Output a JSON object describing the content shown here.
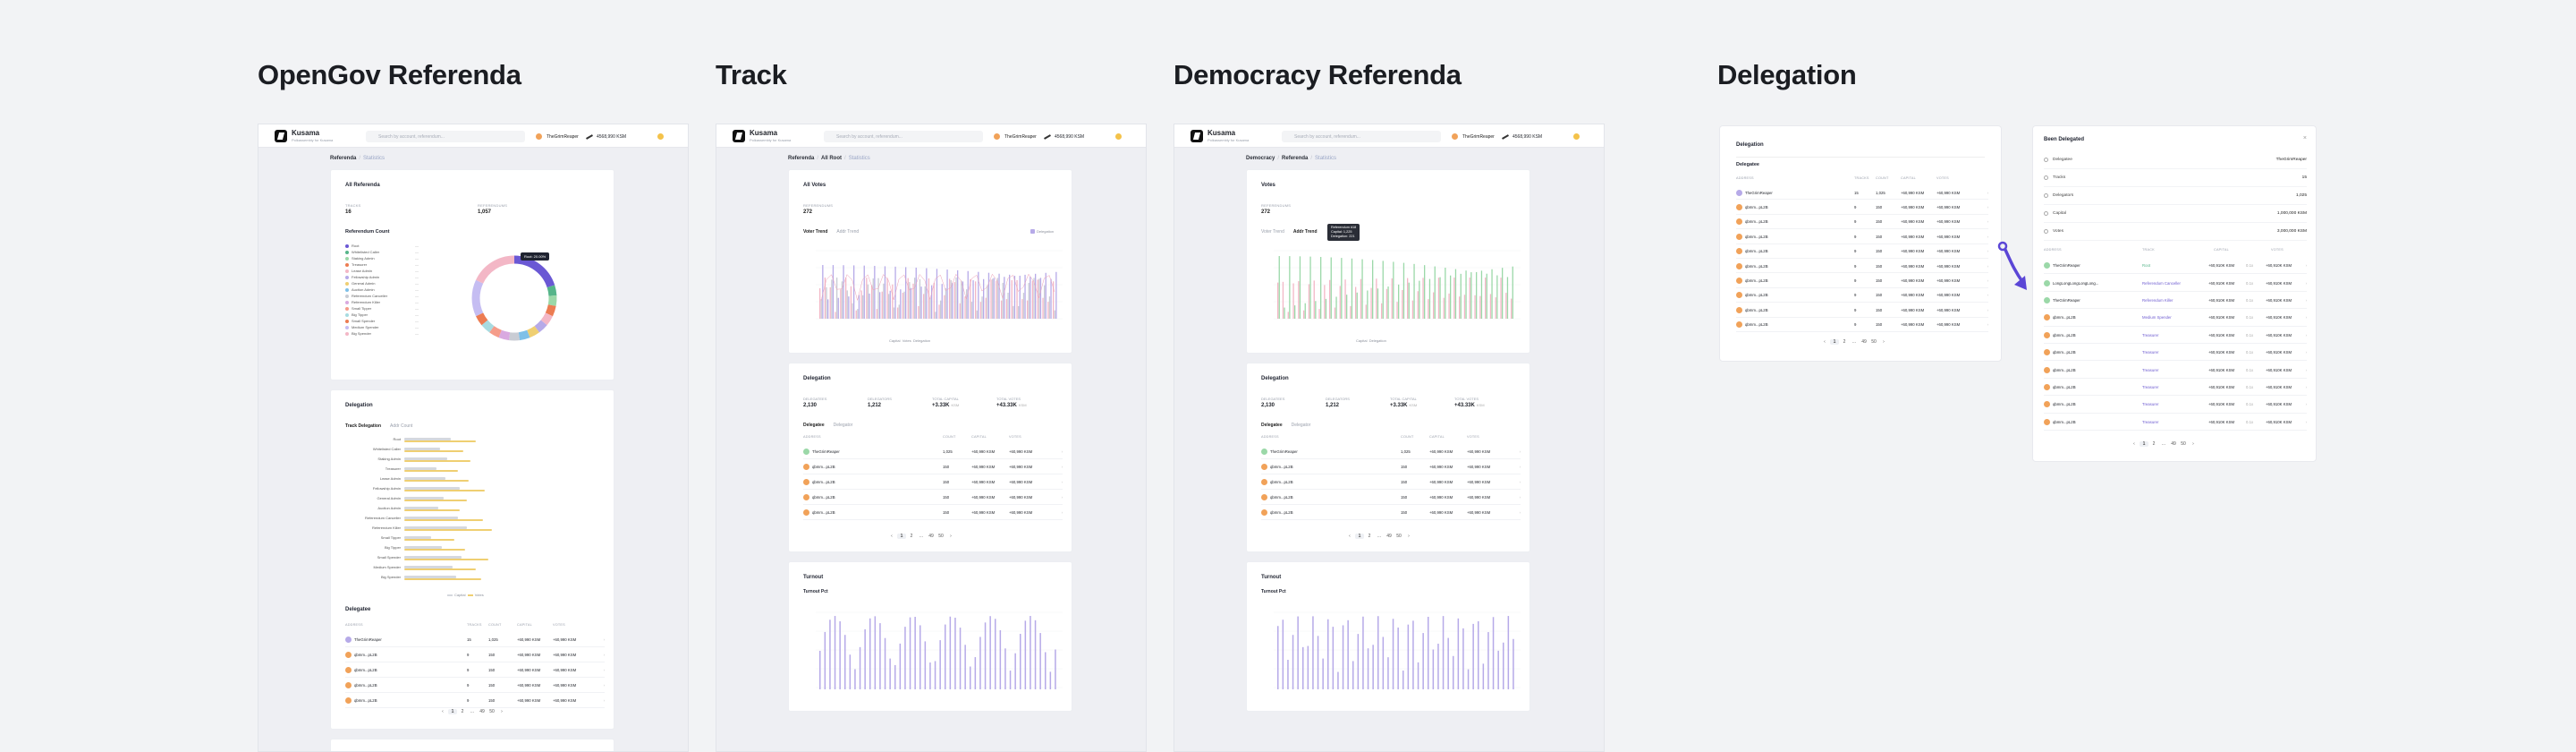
{
  "sections": {
    "opengov": "OpenGov Referenda",
    "track": "Track",
    "democracy": "Democracy Referenda",
    "delegation": "Delegation"
  },
  "app": {
    "name": "Kusama",
    "subtitle": "Polkassembly for Kusama",
    "search_placeholder": "Search by account, referendum...",
    "account": "TheGrimReaper",
    "balance": "4568,990 KSM"
  },
  "screen1": {
    "crumb": [
      "Referenda",
      "Statistics"
    ],
    "all_title": "All Referenda",
    "count_label": "TRACKS",
    "count_value": "16",
    "total_label": "REFERENDUMS",
    "total_value": "1,057",
    "ref_count_title": "Referendum Count",
    "legend": [
      "Root",
      "Whitelisted Caller",
      "Staking Admin",
      "Treasurer",
      "Lease Admin",
      "Fellowship Admin",
      "General Admin",
      "Auction Admin",
      "Referendum Canceller",
      "Referendum Killer",
      "Small Tipper",
      "Big Tipper",
      "Small Spender",
      "Medium Spender",
      "Big Spender"
    ],
    "tooltip": "Root: 20.00%",
    "delegation_title": "Delegation",
    "tabs": [
      "Track Delegation",
      "Addr Count"
    ],
    "bar_tracks": [
      "Root",
      "Whitelisted Caller",
      "Staking Admin",
      "Treasurer",
      "Lease Admin",
      "Fellowship Admin",
      "General Admin",
      "Auction Admin",
      "Referendum Canceller",
      "Referendum Killer",
      "Small Tipper",
      "Big Tipper",
      "Small Spender",
      "Medium Spender",
      "Big Spender"
    ],
    "bar_legend": [
      "Capital",
      "Votes"
    ],
    "delegatee_title": "Delegatee",
    "delegatee_headers": [
      "ADDRESS",
      "TRACKS",
      "COUNT",
      "CAPITAL",
      "VOTES"
    ],
    "delegatee_rows": [
      {
        "addr": "TheGrimReaper",
        "tracks": "15",
        "count": "1,025",
        "capital": "+60,990 KSM",
        "votes": "+60,990 KSM"
      },
      {
        "addr": "qbmm...pL2B",
        "tracks": "9",
        "count": "150",
        "capital": "+60,990 KSM",
        "votes": "+60,990 KSM"
      },
      {
        "addr": "qbmm...pL2B",
        "tracks": "9",
        "count": "150",
        "capital": "+60,990 KSM",
        "votes": "+60,990 KSM"
      },
      {
        "addr": "qbmm...pL2B",
        "tracks": "9",
        "count": "150",
        "capital": "+60,990 KSM",
        "votes": "+60,990 KSM"
      },
      {
        "addr": "qbmm...pL2B",
        "tracks": "9",
        "count": "150",
        "capital": "+60,990 KSM",
        "votes": "+60,990 KSM"
      }
    ],
    "pagination": [
      "1",
      "2",
      "...",
      "49",
      "50"
    ]
  },
  "screen2": {
    "crumb": [
      "Referenda",
      "All Root",
      "Statistics"
    ],
    "votes_title": "All Votes",
    "votes_label": "REFERENDUMS",
    "votes_value": "272",
    "tabs": [
      "Voter Trend",
      "Addr Trend"
    ],
    "legend": [
      "Capital",
      "Votes",
      "Delegation"
    ],
    "legend_right": "Delegation",
    "delegation_title": "Delegation",
    "stats": [
      {
        "label": "DELEGATEES",
        "value": "2,130"
      },
      {
        "label": "DELEGATORS",
        "value": "1,212"
      },
      {
        "label": "TOTAL CAPITAL",
        "value": "+3.33K",
        "unit": "KSM"
      },
      {
        "label": "TOTAL VOTES",
        "value": "+43.33K",
        "unit": "KSM"
      }
    ],
    "dtabs": [
      "Delegatee",
      "Delegator"
    ],
    "headers": [
      "ADDRESS",
      "COUNT",
      "CAPITAL",
      "VOTES"
    ],
    "rows": [
      {
        "addr": "TheGrimReaper",
        "count": "1,025",
        "capital": "+60,990 KSM",
        "votes": "+60,990 KSM"
      },
      {
        "addr": "qbmm...pL2B",
        "count": "150",
        "capital": "+60,990 KSM",
        "votes": "+60,990 KSM"
      },
      {
        "addr": "qbmm...pL2B",
        "count": "150",
        "capital": "+60,990 KSM",
        "votes": "+60,990 KSM"
      },
      {
        "addr": "qbmm...pL2B",
        "count": "150",
        "capital": "+60,990 KSM",
        "votes": "+60,990 KSM"
      },
      {
        "addr": "qbmm...pL2B",
        "count": "150",
        "capital": "+60,990 KSM",
        "votes": "+60,990 KSM"
      }
    ],
    "pagination": [
      "1",
      "2",
      "...",
      "49",
      "50"
    ],
    "turnout_title": "Turnout",
    "turnout_sub": "Turnout Pct"
  },
  "screen3": {
    "crumb": [
      "Democracy",
      "Referenda",
      "Statistics"
    ],
    "votes_title": "Votes",
    "votes_label": "REFERENDUMS",
    "votes_value": "272",
    "tabs": [
      "Voter Trend",
      "Addr Trend"
    ],
    "tooltip": [
      "Referendum #18",
      "Capital: 1,225",
      "Delegation: 221"
    ],
    "legend": [
      "Capital",
      "Delegation"
    ],
    "delegation_title": "Delegation",
    "stats": [
      {
        "label": "DELEGATEES",
        "value": "2,130"
      },
      {
        "label": "DELEGATORS",
        "value": "1,212"
      },
      {
        "label": "TOTAL CAPITAL",
        "value": "+3.33K",
        "unit": "KSM"
      },
      {
        "label": "TOTAL VOTES",
        "value": "+43.33K",
        "unit": "KSM"
      }
    ],
    "dtabs": [
      "Delegatee",
      "Delegator"
    ],
    "headers": [
      "ADDRESS",
      "COUNT",
      "CAPITAL",
      "VOTES"
    ],
    "rows": [
      {
        "addr": "TheGrimReaper",
        "count": "1,025",
        "capital": "+60,990 KSM",
        "votes": "+60,990 KSM"
      },
      {
        "addr": "qbmm...pL2B",
        "count": "150",
        "capital": "+60,990 KSM",
        "votes": "+60,990 KSM"
      },
      {
        "addr": "qbmm...pL2B",
        "count": "150",
        "capital": "+60,990 KSM",
        "votes": "+60,990 KSM"
      },
      {
        "addr": "qbmm...pL2B",
        "count": "150",
        "capital": "+60,990 KSM",
        "votes": "+60,990 KSM"
      },
      {
        "addr": "qbmm...pL2B",
        "count": "150",
        "capital": "+60,990 KSM",
        "votes": "+60,990 KSM"
      }
    ],
    "pagination": [
      "1",
      "2",
      "...",
      "49",
      "50"
    ],
    "turnout_title": "Turnout",
    "turnout_sub": "Turnout Pct"
  },
  "delegation_panel": {
    "title": "Delegation",
    "sub": "Delegatee",
    "headers": [
      "ADDRESS",
      "TRACKS",
      "COUNT",
      "CAPITAL",
      "VOTES"
    ],
    "rows": [
      {
        "addr": "TheGrimReaper",
        "tracks": "15",
        "count": "1,025",
        "capital": "+60,990 KSM",
        "votes": "+60,990 KSM"
      },
      {
        "addr": "qbmm...pL2B",
        "tracks": "9",
        "count": "150",
        "capital": "+60,990 KSM",
        "votes": "+60,990 KSM"
      },
      {
        "addr": "qbmm...pL2B",
        "tracks": "9",
        "count": "150",
        "capital": "+60,990 KSM",
        "votes": "+60,990 KSM"
      },
      {
        "addr": "qbmm...pL2B",
        "tracks": "9",
        "count": "150",
        "capital": "+60,990 KSM",
        "votes": "+60,990 KSM"
      },
      {
        "addr": "qbmm...pL2B",
        "tracks": "9",
        "count": "150",
        "capital": "+60,990 KSM",
        "votes": "+60,990 KSM"
      },
      {
        "addr": "qbmm...pL2B",
        "tracks": "9",
        "count": "150",
        "capital": "+60,990 KSM",
        "votes": "+60,990 KSM"
      },
      {
        "addr": "qbmm...pL2B",
        "tracks": "9",
        "count": "150",
        "capital": "+60,990 KSM",
        "votes": "+60,990 KSM"
      },
      {
        "addr": "qbmm...pL2B",
        "tracks": "9",
        "count": "150",
        "capital": "+60,990 KSM",
        "votes": "+60,990 KSM"
      },
      {
        "addr": "qbmm...pL2B",
        "tracks": "9",
        "count": "150",
        "capital": "+60,990 KSM",
        "votes": "+60,990 KSM"
      },
      {
        "addr": "qbmm...pL2B",
        "tracks": "9",
        "count": "150",
        "capital": "+60,990 KSM",
        "votes": "+60,990 KSM"
      }
    ],
    "pagination": [
      "1",
      "2",
      "...",
      "49",
      "50"
    ]
  },
  "been_delegated": {
    "title": "Been Delegated",
    "fields": [
      {
        "label": "Delegatee",
        "value": "TheGrimReaper"
      },
      {
        "label": "Tracks",
        "value": "15"
      },
      {
        "label": "Delegators",
        "value": "1,025"
      },
      {
        "label": "Capital",
        "value": "1,000,000 KSM"
      },
      {
        "label": "Votes",
        "value": "3,000,000 KSM"
      }
    ],
    "headers": [
      "ADDRESS",
      "TRACK",
      "CAPITAL",
      "VOTES"
    ],
    "rows": [
      {
        "addr": "TheGrimReaper",
        "track": "Root",
        "capital": "+60,910K KSM",
        "conv": "0.1x",
        "votes": "+60,910K KSM"
      },
      {
        "addr": "LongLongLongLongLong...",
        "track": "Referendum Canceller",
        "capital": "+60,910K KSM",
        "conv": "0.1x",
        "votes": "+60,910K KSM"
      },
      {
        "addr": "TheGrimReaper",
        "track": "Referendum Killer",
        "capital": "+60,910K KSM",
        "conv": "0.1x",
        "votes": "+60,910K KSM"
      },
      {
        "addr": "qbmm...pL2B",
        "track": "Medium Spender",
        "capital": "+60,910K KSM",
        "conv": "0.1x",
        "votes": "+60,910K KSM"
      },
      {
        "addr": "qbmm...pL2B",
        "track": "Treasurer",
        "capital": "+60,910K KSM",
        "conv": "0.1x",
        "votes": "+60,910K KSM"
      },
      {
        "addr": "qbmm...pL2B",
        "track": "Treasurer",
        "capital": "+60,910K KSM",
        "conv": "0.1x",
        "votes": "+60,910K KSM"
      },
      {
        "addr": "qbmm...pL2B",
        "track": "Treasurer",
        "capital": "+60,910K KSM",
        "conv": "0.1x",
        "votes": "+60,910K KSM"
      },
      {
        "addr": "qbmm...pL2B",
        "track": "Treasurer",
        "capital": "+60,910K KSM",
        "conv": "0.1x",
        "votes": "+60,910K KSM"
      },
      {
        "addr": "qbmm...pL2B",
        "track": "Treasurer",
        "capital": "+60,910K KSM",
        "conv": "0.1x",
        "votes": "+60,910K KSM"
      },
      {
        "addr": "qbmm...pL2B",
        "track": "Treasurer",
        "capital": "+60,910K KSM",
        "conv": "0.1x",
        "votes": "+60,910K KSM"
      }
    ],
    "pagination": [
      "1",
      "2",
      "...",
      "49",
      "50"
    ]
  },
  "colors": {
    "accent_purple": "#6d5bd0",
    "bar_purple": "#b6aae8",
    "bar_pink": "#f3b7c6",
    "bar_green": "#9bd8a8",
    "donut_orange": "#ec7c52",
    "donut_purple": "#6a58d4",
    "donut_green": "#56b58a",
    "bar_yellow": "#efcf72",
    "bar_gray": "#d5d8de"
  },
  "chart_data": [
    {
      "type": "pie",
      "categories": [
        "Root",
        "Whitelisted Caller",
        "Staking Admin",
        "Treasurer",
        "Lease Admin",
        "Fellowship Admin",
        "General Admin",
        "Auction Admin",
        "Referendum Canceller",
        "Referendum Killer",
        "Small Tipper",
        "Big Tipper",
        "Small Spender",
        "Medium Spender",
        "Big Spender"
      ],
      "values": [
        20,
        4,
        4,
        4,
        4,
        4,
        4,
        4,
        4,
        4,
        4,
        4,
        4,
        14,
        18
      ]
    }
  ]
}
